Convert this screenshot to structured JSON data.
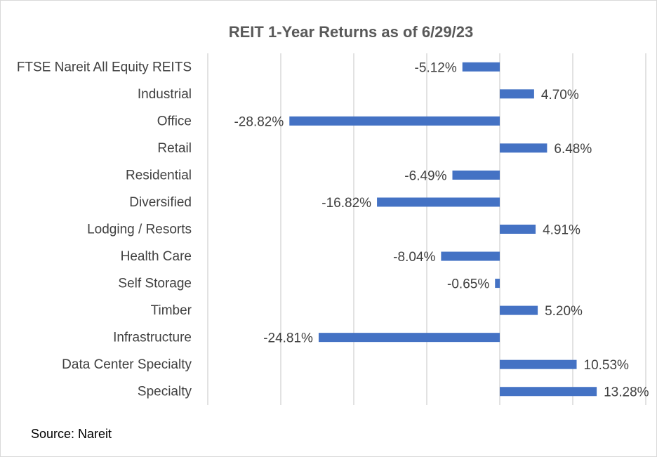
{
  "chart_data": {
    "type": "bar",
    "orientation": "horizontal",
    "title": "REIT 1-Year Returns as of 6/29/23",
    "categories": [
      "FTSE Nareit All Equity REITS",
      "Industrial",
      "Office",
      "Retail",
      "Residential",
      "Diversified",
      "Lodging / Resorts",
      "Health Care",
      "Self Storage",
      "Timber",
      "Infrastructure",
      "Data Center Specialty",
      "Specialty"
    ],
    "values": [
      -5.12,
      4.7,
      -28.82,
      6.48,
      -6.49,
      -16.82,
      4.91,
      -8.04,
      -0.65,
      5.2,
      -24.81,
      10.53,
      13.28
    ],
    "data_labels": [
      "-5.12%",
      "4.70%",
      "-28.82%",
      "6.48%",
      "-6.49%",
      "-16.82%",
      "4.91%",
      "-8.04%",
      "-0.65%",
      "5.20%",
      "-24.81%",
      "10.53%",
      "13.28%"
    ],
    "xlim": [
      -40,
      20
    ],
    "grid": true,
    "bar_color": "#4472c4",
    "source": "Source: Nareit"
  }
}
